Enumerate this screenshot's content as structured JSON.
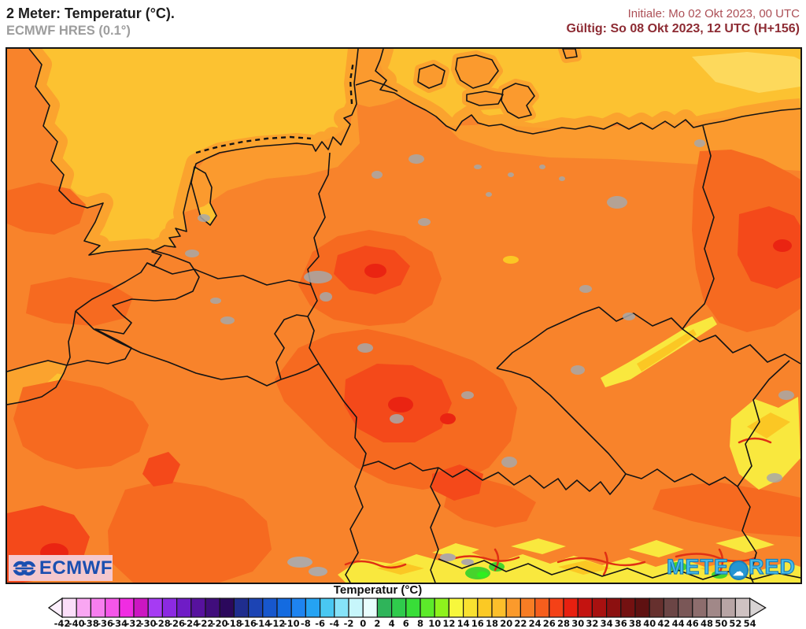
{
  "header": {
    "title": "2 Meter: Temperatur (°C).",
    "subtitle": "ECMWF HRES (0.1°)",
    "init_label": "Initiale: Mo 02 Okt 2023, 00 UTC",
    "valid_label": "Gültig: So 08 Okt 2023, 12 UTC (H+156)",
    "init_color": "#ac4f56",
    "valid_color": "#8d2b33"
  },
  "logos": {
    "ecmwf": {
      "text": "ECMWF",
      "color": "#1a4fb0",
      "bg": "#f4c8ce"
    },
    "meteored": {
      "text_left": "METE",
      "text_right": "RED",
      "lens_icon": "cloud-lens",
      "color": "#49bdea"
    }
  },
  "map": {
    "description": "2m temperature field over Germany and central Europe, ECMWF HRES",
    "colors": {
      "sea": "#fcc231",
      "sea_light": "#fdd95c",
      "coast_band": "#fba32e",
      "land": "#f8832b",
      "land_coast": "#fb9a2e",
      "warm": "#f66a20",
      "hot": "#f4491a",
      "red_spot": "#ea2412",
      "alps_yellow": "#f9e83e",
      "alps_gold": "#fbc724",
      "alps_green": "#46d32c",
      "alps_green_bright": "#2fee1f",
      "ridge_red": "#e03014",
      "glacier": "#b0a8a4",
      "city": "#a8a8a8",
      "border": "#141414"
    }
  },
  "legend": {
    "title": "Temperatur (°C)",
    "ticks": [
      -42,
      -40,
      -38,
      -36,
      -34,
      -32,
      -30,
      -28,
      -26,
      -24,
      -22,
      -20,
      -18,
      -16,
      -14,
      -12,
      -10,
      -8,
      -6,
      -4,
      -2,
      0,
      2,
      4,
      6,
      8,
      10,
      12,
      14,
      16,
      18,
      20,
      22,
      24,
      26,
      28,
      30,
      32,
      34,
      36,
      38,
      40,
      42,
      44,
      46,
      48,
      50,
      52,
      54
    ],
    "cell_colors": [
      "#fbdef9",
      "#f9a6f2",
      "#f77eee",
      "#f556e9",
      "#f02ce2",
      "#cc16c2",
      "#a63bf3",
      "#8c2ae2",
      "#6f1cc6",
      "#57129e",
      "#400d7c",
      "#2b085c",
      "#1f2d8e",
      "#1c44b4",
      "#1757cd",
      "#146be0",
      "#1e84f0",
      "#25a3f3",
      "#49c8f2",
      "#86e3f8",
      "#c7f6fb",
      "#e9fefe",
      "#2fb45a",
      "#2fcb4c",
      "#38de38",
      "#5cea2a",
      "#8ef21d",
      "#f7f73c",
      "#f9e130",
      "#fbc924",
      "#fcbf2b",
      "#fb9a2c",
      "#f87d24",
      "#f65e1d",
      "#f44117",
      "#e82010",
      "#c41310",
      "#a81110",
      "#8c1010",
      "#741111",
      "#5e1111",
      "#66302e",
      "#6b4545",
      "#7a5757",
      "#8d6d6d",
      "#a18888",
      "#b8a5a5",
      "#cfc2c2"
    ],
    "arrow_left": "#fdeffd",
    "arrow_right": "#d8d4d4"
  }
}
